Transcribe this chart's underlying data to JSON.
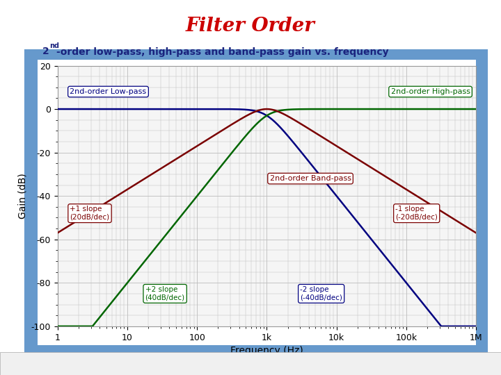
{
  "title": "Filter Order",
  "title_color": "#CC0000",
  "subtitle_color": "#1a237e",
  "xlabel": "Frequency (Hz)",
  "ylabel": "Gain (dB)",
  "xlim": [
    1,
    1000000
  ],
  "ylim": [
    -100,
    20
  ],
  "yticks": [
    20,
    0,
    -20,
    -40,
    -60,
    -80,
    -100
  ],
  "xtick_labels": [
    "1",
    "10",
    "100",
    "1k",
    "10k",
    "100k",
    "1M"
  ],
  "xtick_values": [
    1,
    10,
    100,
    1000,
    10000,
    100000,
    1000000
  ],
  "fc": 1000,
  "Q": 0.707,
  "lp_color": "#000080",
  "hp_color": "#006600",
  "bp_color": "#7a0000",
  "bg_plot_color": "#f5f5f5",
  "frame_color": "#6699cc",
  "frame_bg": "#dce6f1",
  "grid_color": "#bbbbbb",
  "lp_label": "2nd-order Low-pass",
  "hp_label": "2nd-order High-pass",
  "bp_label": "2nd-order Band-pass",
  "ann_slope_p1": "+1 slope\n(20dB/dec)",
  "ann_slope_p2": "+2 slope\n(40dB/dec)",
  "ann_slope_m1": "-1 slope\n(-20dB/dec)",
  "ann_slope_m2": "-2 slope\n(-40dB/dec)"
}
